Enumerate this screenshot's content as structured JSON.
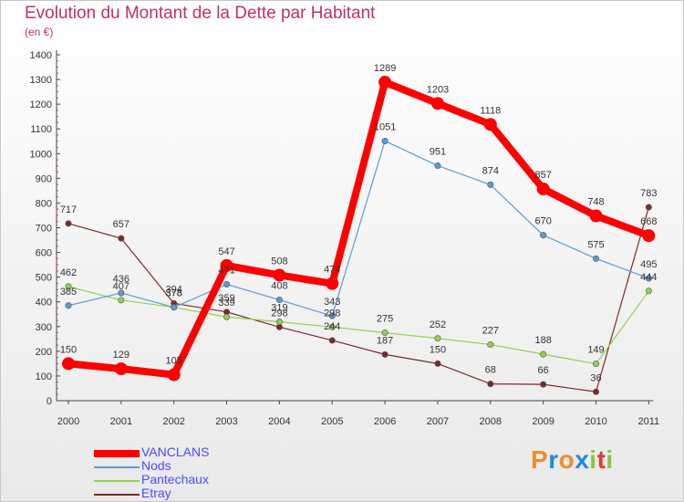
{
  "title": "Evolution du Montant de la Dette par Habitant",
  "subtitle": "(en €)",
  "logo": {
    "text": "Proxiti",
    "colors": [
      "#f28c28",
      "#1e88e5",
      "#f28c28",
      "#1e88e5",
      "#8bc34a",
      "#e53935",
      "#8bc34a"
    ]
  },
  "chart_data": {
    "type": "line",
    "title": "Evolution du Montant de la Dette par Habitant",
    "ylabel": "(en €)",
    "xlabel": "",
    "ylim": [
      0,
      1400
    ],
    "yticks": [
      0,
      100,
      200,
      300,
      400,
      500,
      600,
      700,
      800,
      900,
      1000,
      1100,
      1200,
      1300,
      1400
    ],
    "categories": [
      "2000",
      "2001",
      "2002",
      "2003",
      "2004",
      "2005",
      "2006",
      "2007",
      "2008",
      "2009",
      "2010",
      "2011"
    ],
    "grid": false,
    "legend": "bottom-left",
    "series": [
      {
        "name": "VANCLANS",
        "color": "#ff0000",
        "values": [
          150,
          129,
          105,
          547,
          508,
          474,
          1289,
          1203,
          1118,
          857,
          748,
          668
        ]
      },
      {
        "name": "Nods",
        "color": "#5b9bd5",
        "values": [
          385,
          436,
          378,
          471,
          408,
          343,
          1051,
          951,
          874,
          670,
          575,
          495
        ]
      },
      {
        "name": "Pantechaux",
        "color": "#92d050",
        "values": [
          462,
          407,
          378,
          339,
          319,
          298,
          275,
          252,
          227,
          188,
          149,
          444
        ]
      },
      {
        "name": "Etray",
        "color": "#7b2a2a",
        "values": [
          717,
          657,
          394,
          359,
          298,
          244,
          187,
          150,
          68,
          66,
          36,
          783
        ]
      }
    ],
    "labels_shown": [
      [
        "150",
        "129",
        "105",
        "547",
        "508",
        "474",
        "1289",
        "1203",
        "1118",
        "857",
        "748",
        "668"
      ],
      [
        "385",
        "436",
        "378",
        "471",
        "408",
        "343",
        "1051",
        "951",
        "874",
        "670",
        "575",
        "495"
      ],
      [
        "462",
        "407",
        "378",
        "339",
        "319",
        "298",
        "275",
        "252",
        "227",
        "188",
        "149",
        "444"
      ],
      [
        "717",
        "657",
        "394",
        "359",
        "298",
        "244",
        "187",
        "150",
        "68",
        "66",
        "36",
        "783"
      ]
    ]
  }
}
